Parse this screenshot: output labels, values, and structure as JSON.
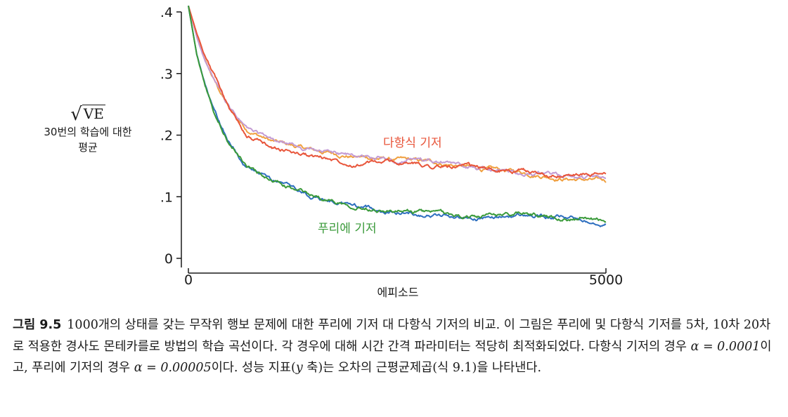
{
  "figure": {
    "y_title": "VE",
    "y_title_sub1": "30번의 학습에 대한",
    "y_title_sub2": "평균",
    "x_title": "에피소드",
    "y_tick_labels": [
      ".4",
      ".3",
      ".2",
      ".1",
      "0"
    ],
    "x_tick_labels": [
      "0",
      "5000"
    ],
    "series_label_poly": "다항식 기저",
    "series_label_fourier": "푸리에 기저"
  },
  "chart_data": {
    "type": "line",
    "xlabel": "에피소드",
    "ylabel": "√VE",
    "xlim": [
      0,
      5000
    ],
    "ylim": [
      0,
      0.4
    ],
    "x": [
      0,
      100,
      200,
      300,
      400,
      500,
      700,
      1000,
      1500,
      2000,
      2500,
      3000,
      3500,
      4000,
      4500,
      5000
    ],
    "series": [
      {
        "name": "다항식 기저",
        "order": 5,
        "color": "#f0a040",
        "values": [
          0.41,
          0.36,
          0.32,
          0.29,
          0.265,
          0.24,
          0.21,
          0.19,
          0.175,
          0.165,
          0.16,
          0.155,
          0.145,
          0.14,
          0.13,
          0.125
        ]
      },
      {
        "name": "다항식 기저",
        "order": 10,
        "color": "#c39bd3",
        "values": [
          0.41,
          0.36,
          0.32,
          0.29,
          0.265,
          0.24,
          0.21,
          0.19,
          0.175,
          0.165,
          0.16,
          0.155,
          0.145,
          0.14,
          0.133,
          0.128
        ]
      },
      {
        "name": "다항식 기저",
        "order": 20,
        "color": "#e8553a",
        "values": [
          0.41,
          0.365,
          0.33,
          0.3,
          0.27,
          0.24,
          0.2,
          0.18,
          0.165,
          0.155,
          0.155,
          0.15,
          0.145,
          0.14,
          0.135,
          0.135
        ]
      },
      {
        "name": "푸리에 기저",
        "order": 5,
        "color": "#2e6fbf",
        "values": [
          0.41,
          0.33,
          0.28,
          0.24,
          0.21,
          0.185,
          0.15,
          0.125,
          0.1,
          0.085,
          0.075,
          0.07,
          0.065,
          0.07,
          0.065,
          0.06
        ]
      },
      {
        "name": "푸리에 기저",
        "order": 10,
        "color": "#3a9a3a",
        "values": [
          0.41,
          0.33,
          0.28,
          0.24,
          0.21,
          0.185,
          0.15,
          0.125,
          0.1,
          0.087,
          0.077,
          0.072,
          0.067,
          0.072,
          0.067,
          0.062
        ]
      }
    ]
  },
  "caption": {
    "label": "그림 9.5",
    "text_part1": "1000개의 상태를 갖는 무작위 행보 문제에 대한 푸리에 기저 대 다항식 기저의 비교. 이 그림은 푸리에 및 다항식 기저를 5차, 10차 20차로 적용한 경사도 몬테카를로 방법의 학습 곡선이다. 각 경우에 대해 시간 간격 파라미터는 적당히 최적화되었다. 다항식 기저의 경우 ",
    "alpha1": "α = 0.0001",
    "text_part2": "이고, 푸리에 기저의 경우 ",
    "alpha2": "α = 0.00005",
    "text_part3": "이다. 성능 지표(",
    "y_sym": "y",
    "text_part4": " 축)는 오차의 근평균제곱(식 9.1)을 나타낸다."
  }
}
